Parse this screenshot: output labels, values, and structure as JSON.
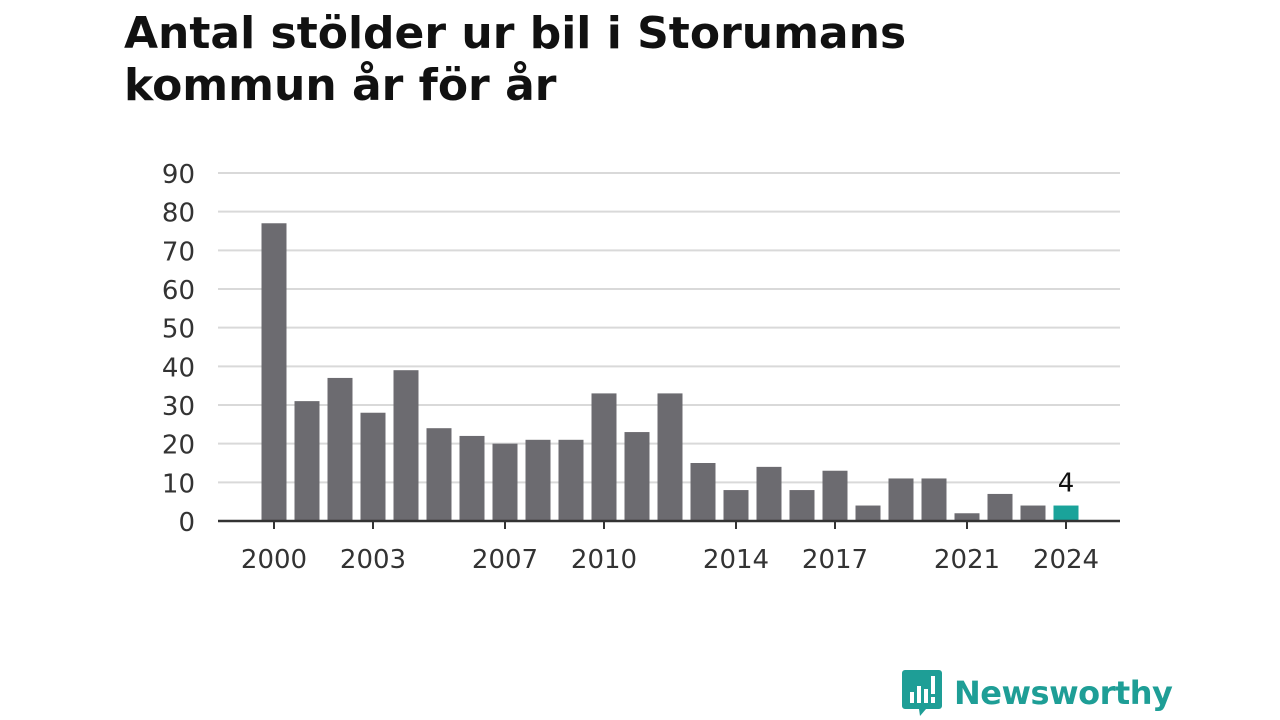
{
  "title": "Antal stölder ur bil i Storumans kommun år för år",
  "brand": {
    "name": "Newsworthy",
    "icon": "newsworthy-logo-icon",
    "color": "#1e9e96"
  },
  "colors": {
    "bar": "#6c6b70",
    "highlight": "#1aa39a",
    "grid": "#d9d9d9",
    "axis": "#333333",
    "text": "#333333"
  },
  "chart_data": {
    "type": "bar",
    "x": [
      2000,
      2001,
      2002,
      2003,
      2004,
      2005,
      2006,
      2007,
      2008,
      2009,
      2010,
      2011,
      2012,
      2013,
      2014,
      2015,
      2016,
      2017,
      2018,
      2019,
      2020,
      2021,
      2022,
      2023,
      2024
    ],
    "values": [
      77,
      31,
      37,
      28,
      39,
      24,
      22,
      20,
      21,
      21,
      33,
      23,
      33,
      15,
      8,
      14,
      8,
      13,
      4,
      11,
      11,
      2,
      7,
      4,
      4
    ],
    "x_tick_labels": [
      "2000",
      "2003",
      "2007",
      "2010",
      "2014",
      "2017",
      "2021",
      "2024"
    ],
    "y_ticks": [
      0,
      10,
      20,
      30,
      40,
      50,
      60,
      70,
      80,
      90
    ],
    "ylim": [
      0,
      90
    ],
    "highlight": {
      "x": 2024,
      "label": "4"
    },
    "grid": true,
    "xlabel": "",
    "ylabel": ""
  }
}
